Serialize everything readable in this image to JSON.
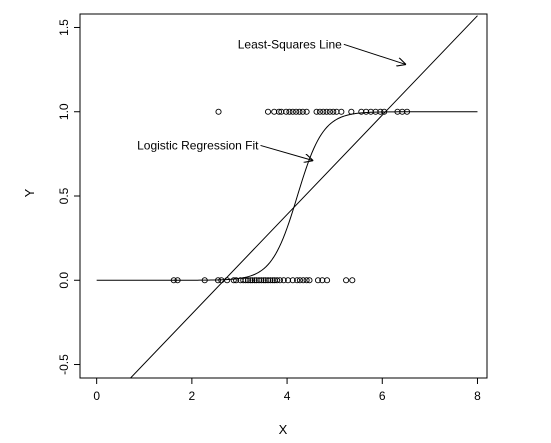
{
  "chart_data": {
    "type": "scatter",
    "title": "",
    "xlabel": "X",
    "ylabel": "Y",
    "xlim": [
      -0.35,
      8.2
    ],
    "ylim": [
      -0.58,
      1.58
    ],
    "xticks": [
      0,
      2,
      4,
      6,
      8
    ],
    "yticks": [
      -0.5,
      0.0,
      0.5,
      1.0,
      1.5
    ],
    "xtick_labels": [
      "0",
      "2",
      "4",
      "6",
      "8"
    ],
    "ytick_labels": [
      "-0.5",
      "0.0",
      "0.5",
      "1.0",
      "1.5"
    ],
    "grid": false,
    "axes_box": true,
    "series": [
      {
        "kind": "points",
        "marker": "open-circle",
        "x": [
          1.62,
          1.7,
          2.27,
          2.55,
          2.62,
          2.74,
          2.88,
          2.93,
          3.02,
          3.08,
          3.13,
          3.18,
          3.23,
          3.27,
          3.32,
          3.36,
          3.41,
          3.46,
          3.51,
          3.55,
          3.6,
          3.65,
          3.7,
          3.74,
          3.79,
          3.85,
          3.93,
          4.02,
          4.12,
          4.21,
          4.27,
          4.34,
          4.41,
          4.47,
          4.65,
          4.74,
          4.84,
          5.24,
          5.37
        ],
        "y": [
          0,
          0,
          0,
          0,
          0,
          0,
          0,
          0,
          0,
          0,
          0,
          0,
          0,
          0,
          0,
          0,
          0,
          0,
          0,
          0,
          0,
          0,
          0,
          0,
          0,
          0,
          0,
          0,
          0,
          0,
          0,
          0,
          0,
          0,
          0,
          0,
          0,
          0,
          0
        ]
      },
      {
        "kind": "points",
        "marker": "open-circle",
        "x": [
          2.56,
          3.6,
          3.73,
          3.83,
          3.88,
          3.98,
          4.05,
          4.12,
          4.19,
          4.26,
          4.33,
          4.41,
          4.62,
          4.69,
          4.76,
          4.83,
          4.9,
          4.97,
          5.04,
          5.14,
          5.35,
          5.56,
          5.66,
          5.76,
          5.86,
          5.96,
          6.04,
          6.32,
          6.42,
          6.52
        ],
        "y": [
          1,
          1,
          1,
          1,
          1,
          1,
          1,
          1,
          1,
          1,
          1,
          1,
          1,
          1,
          1,
          1,
          1,
          1,
          1,
          1,
          1,
          1,
          1,
          1,
          1,
          1,
          1,
          1,
          1,
          1
        ]
      },
      {
        "kind": "line",
        "fit": "least-squares",
        "intercept": -0.79,
        "slope": 0.295,
        "x_range": [
          0,
          8
        ]
      },
      {
        "kind": "line",
        "fit": "logistic",
        "beta0": -15.6,
        "beta1": 3.7,
        "x_range": [
          0,
          8
        ]
      }
    ],
    "annotations": [
      {
        "text": "Least-Squares Line",
        "at": [
          5.15,
          1.4
        ],
        "arrow_to": [
          6.5,
          1.28
        ]
      },
      {
        "text": "Logistic Regression Fit",
        "at": [
          3.4,
          0.8
        ],
        "arrow_to": [
          4.55,
          0.71
        ]
      }
    ]
  }
}
